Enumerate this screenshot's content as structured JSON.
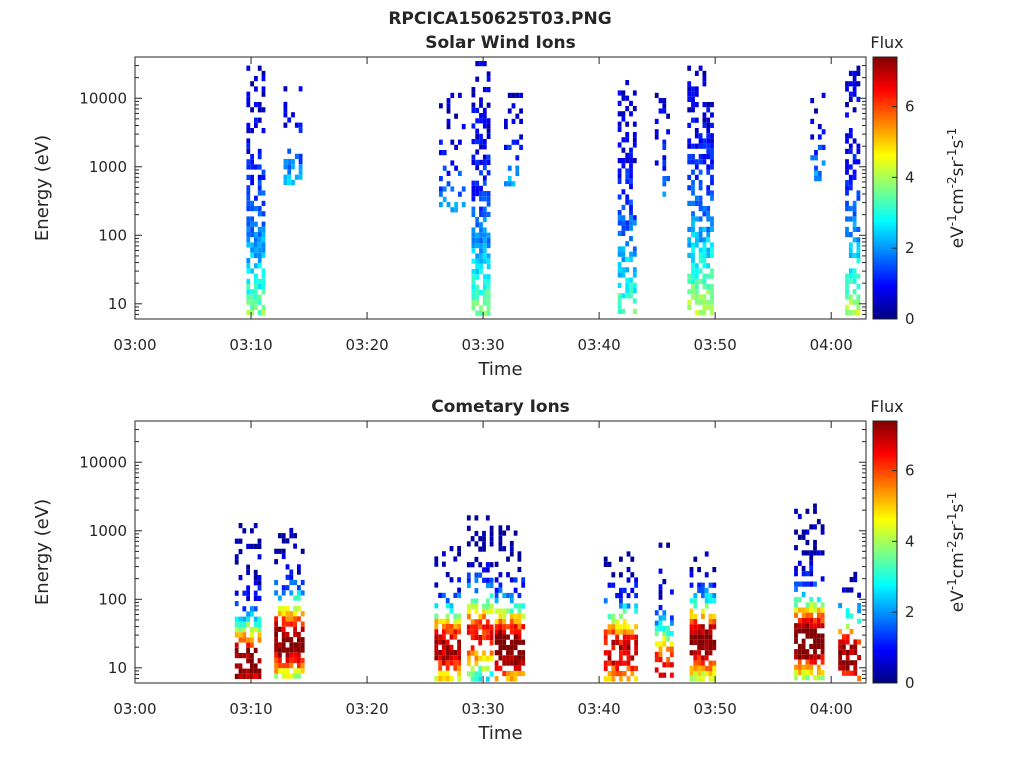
{
  "figure": {
    "title": "RPCICA150625T03.PNG"
  },
  "panels": [
    {
      "title": "Solar Wind Ions",
      "xlabel": "Time",
      "ylabel": "Energy (eV)",
      "cbar_title": "Flux",
      "cbar_label_parts": [
        "eV",
        "-1",
        "cm",
        "-2",
        "sr",
        "-1",
        "s",
        "-1"
      ],
      "yticks": [
        "10",
        "100",
        "1000",
        "10000"
      ],
      "xticks": [
        "03:00",
        "03:10",
        "03:20",
        "03:30",
        "03:40",
        "03:50",
        "04:00"
      ],
      "cticks": [
        "0",
        "2",
        "4",
        "6"
      ]
    },
    {
      "title": "Cometary Ions",
      "xlabel": "Time",
      "ylabel": "Energy (eV)",
      "cbar_title": "Flux",
      "cbar_label_parts": [
        "eV",
        "-1",
        "cm",
        "-2",
        "sr",
        "-1",
        "s",
        "-1"
      ],
      "yticks": [
        "10",
        "100",
        "1000",
        "10000"
      ],
      "xticks": [
        "03:00",
        "03:10",
        "03:20",
        "03:30",
        "03:40",
        "03:50",
        "04:00"
      ],
      "cticks": [
        "0",
        "2",
        "4",
        "6"
      ]
    }
  ],
  "chart_data": [
    {
      "type": "heatmap",
      "title": "Solar Wind Ions",
      "xlabel": "Time",
      "ylabel": "Energy (eV)",
      "x_range_minutes": [
        0,
        63
      ],
      "x_ticks": [
        "03:00",
        "03:10",
        "03:20",
        "03:30",
        "03:40",
        "03:50",
        "04:00"
      ],
      "y_scale": "log",
      "y_range_eV": [
        6,
        40000
      ],
      "y_ticks": [
        10,
        100,
        1000,
        10000
      ],
      "color_scale": "jet",
      "color_range": [
        0,
        7.4
      ],
      "color_ticks": [
        0,
        2,
        4,
        6
      ],
      "colorbar_title": "Flux",
      "colorbar_units": "eV-1cm-2sr-1s-1",
      "bursts": [
        {
          "t_start": 9.6,
          "t_end": 11.3,
          "e_low": 6,
          "e_high": 30000,
          "flux_hi": 3.8,
          "density": 0.55
        },
        {
          "t_start": 12.8,
          "t_end": 14.6,
          "e_low": 500,
          "e_high": 15000,
          "flux_hi": 2.4,
          "density": 0.32
        },
        {
          "t_start": 26.2,
          "t_end": 28.4,
          "e_low": 200,
          "e_high": 12000,
          "flux_hi": 2.2,
          "density": 0.22
        },
        {
          "t_start": 29.0,
          "t_end": 30.8,
          "e_low": 6,
          "e_high": 35000,
          "flux_hi": 3.8,
          "density": 0.6
        },
        {
          "t_start": 31.8,
          "t_end": 33.6,
          "e_low": 500,
          "e_high": 12000,
          "flux_hi": 2.2,
          "density": 0.25
        },
        {
          "t_start": 41.6,
          "t_end": 43.4,
          "e_low": 6,
          "e_high": 22000,
          "flux_hi": 3.6,
          "density": 0.55
        },
        {
          "t_start": 44.8,
          "t_end": 46.2,
          "e_low": 300,
          "e_high": 12000,
          "flux_hi": 2.0,
          "density": 0.25
        },
        {
          "t_start": 47.6,
          "t_end": 50.0,
          "e_low": 6,
          "e_high": 30000,
          "flux_hi": 4.4,
          "density": 0.6
        },
        {
          "t_start": 58.2,
          "t_end": 59.4,
          "e_low": 600,
          "e_high": 12000,
          "flux_hi": 2.2,
          "density": 0.28
        },
        {
          "t_start": 61.2,
          "t_end": 62.6,
          "e_low": 6,
          "e_high": 30000,
          "flux_hi": 4.2,
          "density": 0.55
        }
      ]
    },
    {
      "type": "heatmap",
      "title": "Cometary Ions",
      "xlabel": "Time",
      "ylabel": "Energy (eV)",
      "x_range_minutes": [
        0,
        63
      ],
      "x_ticks": [
        "03:00",
        "03:10",
        "03:20",
        "03:30",
        "03:40",
        "03:50",
        "04:00"
      ],
      "y_scale": "log",
      "y_range_eV": [
        6,
        40000
      ],
      "y_ticks": [
        10,
        100,
        1000,
        10000
      ],
      "color_scale": "jet",
      "color_range": [
        0,
        7.4
      ],
      "color_ticks": [
        0,
        2,
        4,
        6
      ],
      "colorbar_title": "Flux",
      "colorbar_units": "eV-1cm-2sr-1s-1",
      "bursts": [
        {
          "t_start": 8.6,
          "t_end": 11.0,
          "e_low": 6,
          "e_high": 1300,
          "e_peak": 12,
          "flux_hi": 6.6,
          "density": 0.55
        },
        {
          "t_start": 12.0,
          "t_end": 14.5,
          "e_low": 6,
          "e_high": 1100,
          "e_peak": 25,
          "flux_hi": 6.8,
          "density": 0.6
        },
        {
          "t_start": 25.8,
          "t_end": 28.2,
          "e_low": 6,
          "e_high": 600,
          "e_peak": 20,
          "flux_hi": 6.2,
          "density": 0.6
        },
        {
          "t_start": 28.6,
          "t_end": 30.8,
          "e_low": 6,
          "e_high": 2000,
          "e_peak": 30,
          "flux_hi": 5.6,
          "density": 0.55
        },
        {
          "t_start": 31.0,
          "t_end": 33.6,
          "e_low": 6,
          "e_high": 1200,
          "e_peak": 20,
          "flux_hi": 6.9,
          "density": 0.6
        },
        {
          "t_start": 40.4,
          "t_end": 43.4,
          "e_low": 6,
          "e_high": 500,
          "e_peak": 18,
          "flux_hi": 6.0,
          "density": 0.55
        },
        {
          "t_start": 44.8,
          "t_end": 46.4,
          "e_low": 6,
          "e_high": 800,
          "e_peak": 10,
          "flux_hi": 5.4,
          "density": 0.45
        },
        {
          "t_start": 47.8,
          "t_end": 50.2,
          "e_low": 6,
          "e_high": 500,
          "e_peak": 25,
          "flux_hi": 6.8,
          "density": 0.6
        },
        {
          "t_start": 56.8,
          "t_end": 59.4,
          "e_low": 6,
          "e_high": 2500,
          "e_peak": 25,
          "flux_hi": 7.0,
          "density": 0.6
        },
        {
          "t_start": 60.6,
          "t_end": 62.6,
          "e_low": 6,
          "e_high": 300,
          "e_peak": 15,
          "flux_hi": 6.4,
          "density": 0.55
        }
      ]
    }
  ]
}
